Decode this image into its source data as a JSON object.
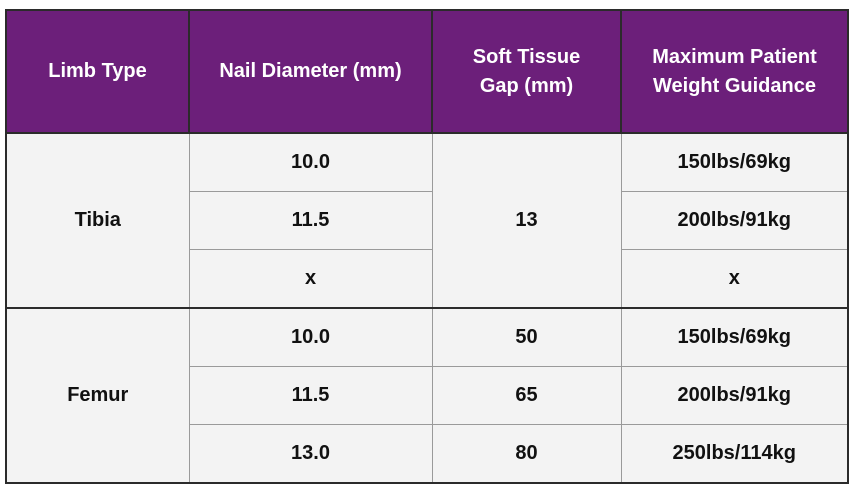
{
  "table": {
    "headers": [
      "Limb Type",
      "Nail Diameter (mm)",
      "Soft Tissue Gap (mm)",
      "Maximum Patient Weight Guidance"
    ],
    "groups": [
      {
        "limb": "Tibia",
        "soft_tissue_gap": "13",
        "rows": [
          {
            "nail_diameter": "10.0",
            "max_weight": "150lbs/69kg"
          },
          {
            "nail_diameter": "11.5",
            "max_weight": "200lbs/91kg"
          },
          {
            "nail_diameter": "x",
            "max_weight": "x"
          }
        ]
      },
      {
        "limb": "Femur",
        "rows": [
          {
            "nail_diameter": "10.0",
            "soft_tissue_gap": "50",
            "max_weight": "150lbs/69kg"
          },
          {
            "nail_diameter": "11.5",
            "soft_tissue_gap": "65",
            "max_weight": "200lbs/91kg"
          },
          {
            "nail_diameter": "13.0",
            "soft_tissue_gap": "80",
            "max_weight": "250lbs/114kg"
          }
        ]
      }
    ]
  }
}
